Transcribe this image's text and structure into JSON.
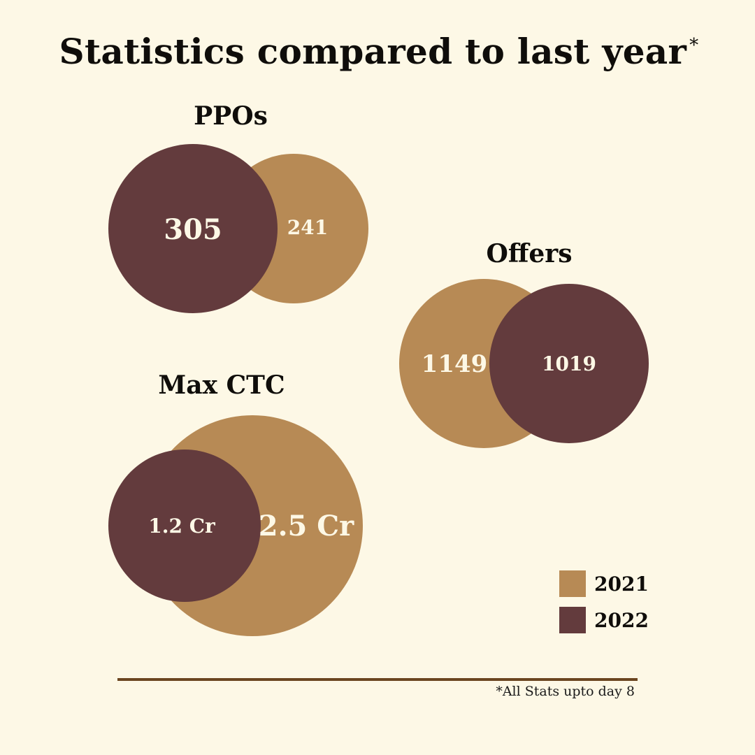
{
  "header": {
    "title": "Statistics compared to last year",
    "title_mark": "*"
  },
  "colors": {
    "y2021": "#b78a55",
    "y2022": "#633b3d",
    "background": "#fdf8e6",
    "rule": "#6b4520"
  },
  "chart_data": {
    "type": "bubble-comparison",
    "title": "Statistics compared to last year",
    "legend": {
      "placement": "bottom-right",
      "entries": [
        "2021",
        "2022"
      ]
    },
    "groups": [
      {
        "name": "PPOs",
        "values": {
          "2021": "241",
          "2022": "305"
        }
      },
      {
        "name": "Offers",
        "values": {
          "2021": "1149",
          "2022": "1019"
        }
      },
      {
        "name": "Max CTC",
        "values": {
          "2021": "2.5 Cr",
          "2022": "1.2 Cr"
        }
      }
    ]
  },
  "legend": {
    "items": [
      {
        "label": "2021"
      },
      {
        "label": "2022"
      }
    ]
  },
  "footer": {
    "note": "*All Stats upto day 8"
  }
}
